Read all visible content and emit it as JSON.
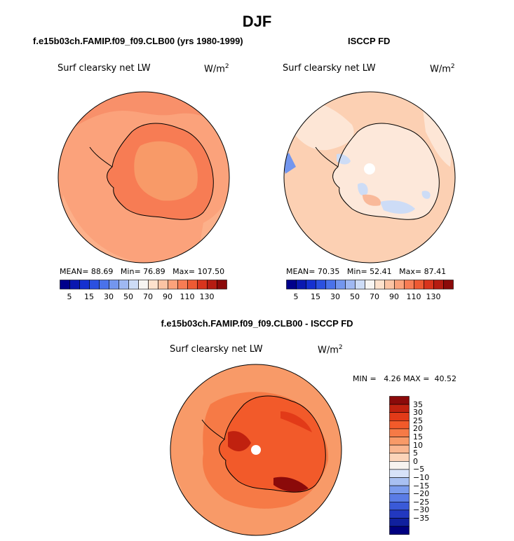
{
  "title": "DJF",
  "panels": [
    {
      "title": "f.e15b03ch.FAMIP.f09_f09.CLB00 (yrs 1980-1999)",
      "variable": "Surf clearsky net LW",
      "units": "W/m",
      "units_sup": "2",
      "stats": {
        "mean_label": "MEAN=",
        "mean": "88.69",
        "min_label": "Min=",
        "min": "76.89",
        "max_label": "Max=",
        "max": "107.50"
      }
    },
    {
      "title": "ISCCP FD",
      "variable": "Surf clearsky net LW",
      "units": "W/m",
      "units_sup": "2",
      "stats": {
        "mean_label": "MEAN=",
        "mean": "70.35",
        "min_label": "Min=",
        "min": "52.41",
        "max_label": "Max=",
        "max": "87.41"
      }
    },
    {
      "title": "f.e15b03ch.FAMIP.f09_f09.CLB00 - ISCCP FD",
      "variable": "Surf clearsky net LW",
      "units": "W/m",
      "units_sup": "2",
      "stats": {
        "min_label": "MIN =",
        "min": "4.26",
        "max_label": "MAX =",
        "max": "40.52"
      }
    }
  ],
  "colorbar_abs": {
    "tick_labels": [
      "5",
      "15",
      "30",
      "50",
      "70",
      "90",
      "110",
      "130"
    ],
    "colors": [
      "#00008b",
      "#0a18b0",
      "#1530d0",
      "#2b50e0",
      "#4a72ea",
      "#7396ee",
      "#9fb8f2",
      "#cddcf6",
      "#f7f5f2",
      "#fde1cc",
      "#fcc4a4",
      "#fba27b",
      "#f77c54",
      "#ee5a33",
      "#d8341d",
      "#b51c12",
      "#8b0a0a"
    ]
  },
  "colorbar_diff": {
    "tick_labels": [
      "35",
      "30",
      "25",
      "20",
      "15",
      "10",
      "5",
      "0",
      "−5",
      "−10",
      "−15",
      "−20",
      "−25",
      "−30",
      "−35"
    ],
    "colors": [
      "#8b0a0a",
      "#c0210f",
      "#e23a18",
      "#f25a2a",
      "#f67a46",
      "#f89a68",
      "#fab690",
      "#fcd4b9",
      "#f7f3ef",
      "#d7e2f8",
      "#a8c0f2",
      "#7b9cee",
      "#5a7ce6",
      "#3a5ad8",
      "#2238c0",
      "#10209e",
      "#000080"
    ]
  },
  "chart_data": [
    {
      "type": "heatmap",
      "title": "f.e15b03ch.FAMIP.f09_f09.CLB00 (yrs 1980-1999)",
      "variable": "Surf clearsky net LW",
      "units": "W/m2",
      "projection": "south polar stereographic",
      "mean": 88.69,
      "min": 76.89,
      "max": 107.5,
      "colorbar_levels": [
        5,
        15,
        30,
        50,
        70,
        90,
        110,
        130
      ]
    },
    {
      "type": "heatmap",
      "title": "ISCCP FD",
      "variable": "Surf clearsky net LW",
      "units": "W/m2",
      "projection": "south polar stereographic",
      "mean": 70.35,
      "min": 52.41,
      "max": 87.41,
      "colorbar_levels": [
        5,
        15,
        30,
        50,
        70,
        90,
        110,
        130
      ]
    },
    {
      "type": "heatmap",
      "title": "f.e15b03ch.FAMIP.f09_f09.CLB00 - ISCCP FD",
      "variable": "Surf clearsky net LW",
      "units": "W/m2",
      "projection": "south polar stereographic",
      "min": 4.26,
      "max": 40.52,
      "colorbar_levels": [
        35,
        30,
        25,
        20,
        15,
        10,
        5,
        0,
        -5,
        -10,
        -15,
        -20,
        -25,
        -30,
        -35
      ]
    }
  ]
}
